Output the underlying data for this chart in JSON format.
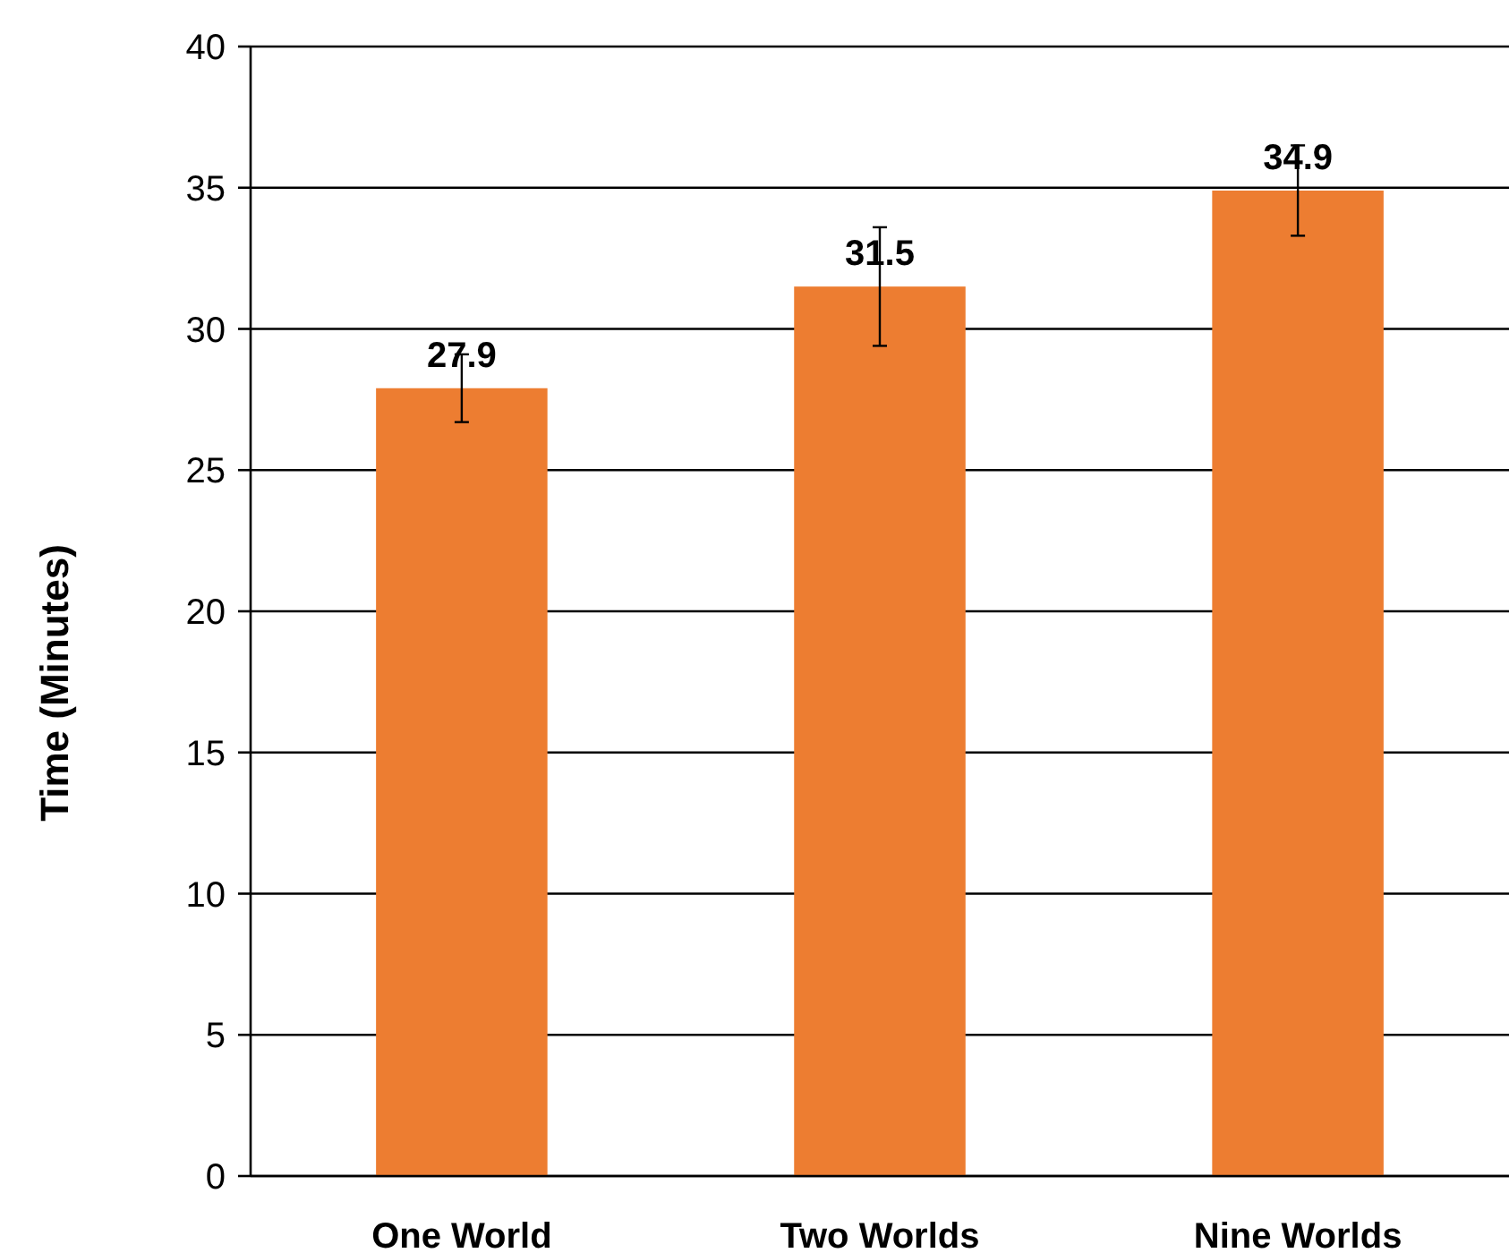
{
  "chart_data": {
    "type": "bar",
    "ylabel": "Time (Minutes)",
    "categories": [
      "One World",
      "Two Worlds",
      "Nine Worlds"
    ],
    "values": [
      27.9,
      31.5,
      34.9
    ],
    "errors": [
      1.2,
      2.1,
      1.6
    ],
    "color": "#ed7d31",
    "data_labels": true,
    "ylim": [
      0,
      40
    ],
    "yticks": [
      0,
      5,
      10,
      15,
      20,
      25,
      30,
      35,
      40
    ],
    "grid": "y"
  }
}
